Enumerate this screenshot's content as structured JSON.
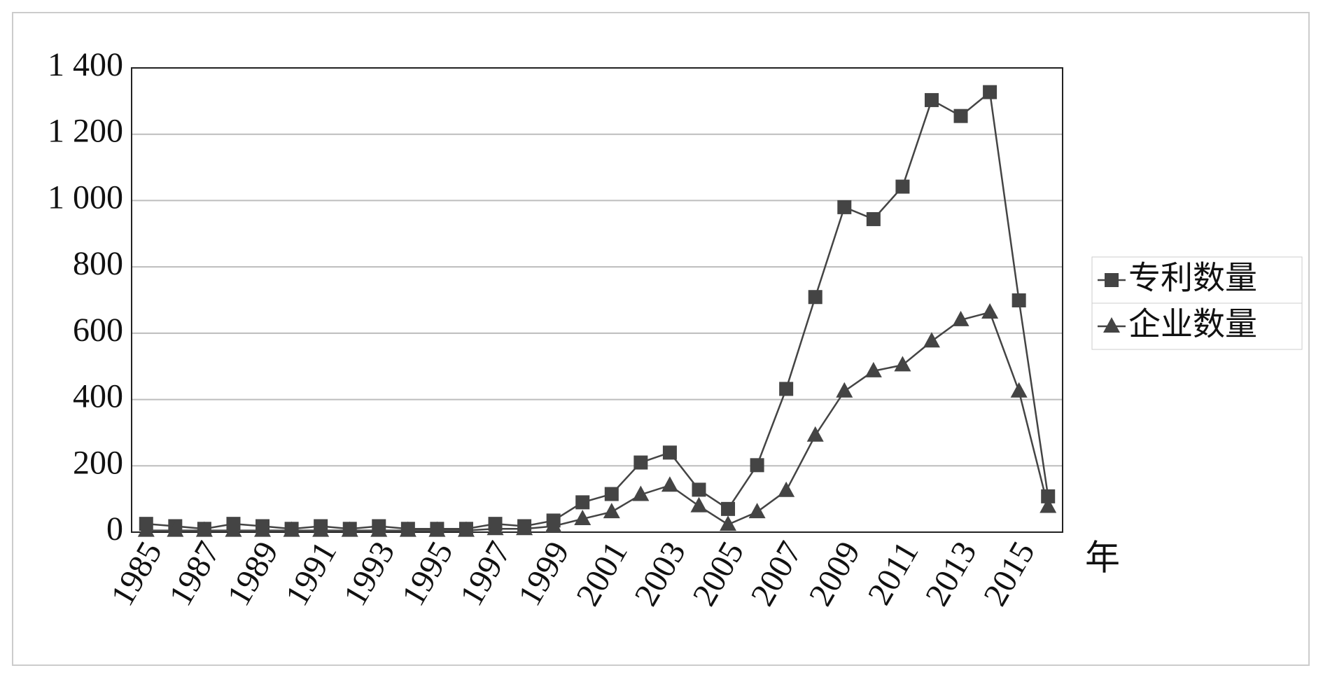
{
  "chart_data": {
    "type": "line",
    "x_label": "年",
    "categories": [
      "1985",
      null,
      "1987",
      null,
      "1989",
      null,
      "1991",
      null,
      "1993",
      null,
      "1995",
      null,
      "1997",
      null,
      "1999",
      null,
      "2001",
      null,
      "2003",
      null,
      "2005",
      null,
      "2007",
      null,
      "2009",
      null,
      "2011",
      null,
      "2013",
      null,
      "2015",
      null
    ],
    "series": [
      {
        "name": "专利数量",
        "color": "#444444",
        "marker": "square",
        "values": [
          25,
          18,
          10,
          25,
          18,
          10,
          18,
          10,
          18,
          10,
          10,
          10,
          25,
          18,
          35,
          90,
          115,
          210,
          240,
          128,
          70,
          202,
          432,
          709,
          980,
          944,
          1042,
          1303,
          1255,
          1327,
          699,
          108
        ]
      },
      {
        "name": "企业数量",
        "color": "#444444",
        "marker": "triangle",
        "values": [
          5,
          5,
          5,
          5,
          5,
          5,
          5,
          5,
          5,
          5,
          5,
          5,
          10,
          10,
          18,
          40,
          61,
          113,
          141,
          79,
          23,
          61,
          125,
          292,
          425,
          486,
          504,
          576,
          640,
          663,
          425,
          77
        ]
      }
    ],
    "ylim": [
      0,
      1400
    ],
    "yticks": [
      0,
      200,
      400,
      600,
      800,
      {
        "value": 1000,
        "label": "1 000"
      },
      {
        "value": 1200,
        "label": "1 200"
      },
      {
        "value": 1400,
        "label": "1 400"
      }
    ],
    "grid": true,
    "legend": "right"
  }
}
